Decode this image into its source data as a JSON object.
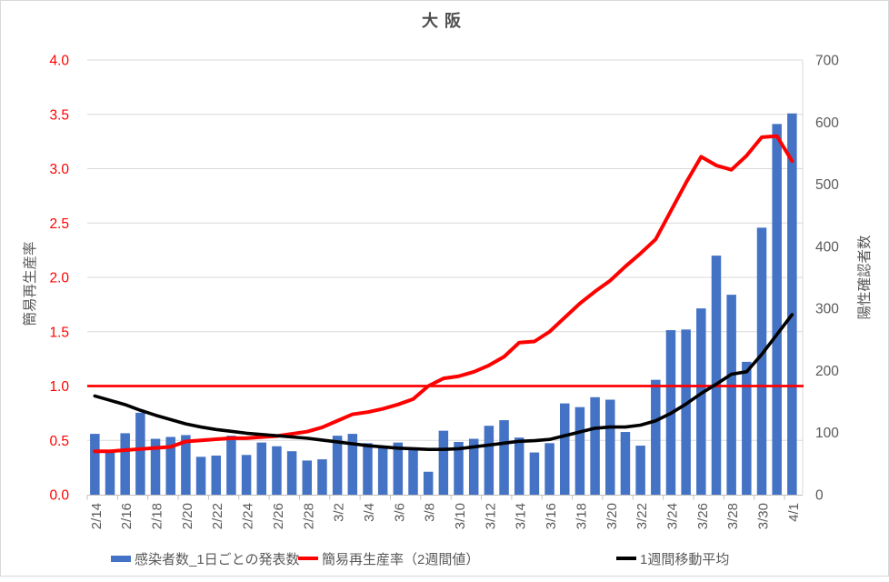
{
  "chart_data": {
    "type": "combo",
    "title": "大阪",
    "categories": [
      "2/14",
      "2/15",
      "2/16",
      "2/17",
      "2/18",
      "2/19",
      "2/20",
      "2/21",
      "2/22",
      "2/23",
      "2/24",
      "2/25",
      "2/26",
      "2/27",
      "2/28",
      "3/1",
      "3/2",
      "3/3",
      "3/4",
      "3/5",
      "3/6",
      "3/7",
      "3/8",
      "3/9",
      "3/10",
      "3/11",
      "3/12",
      "3/13",
      "3/14",
      "3/15",
      "3/16",
      "3/17",
      "3/18",
      "3/19",
      "3/20",
      "3/21",
      "3/22",
      "3/23",
      "3/24",
      "3/25",
      "3/26",
      "3/27",
      "3/28",
      "3/29",
      "3/30",
      "3/31",
      "4/1"
    ],
    "x_label_every_n": 2,
    "series": [
      {
        "name": "感染者数_1日ごとの発表数",
        "type": "bar",
        "axis": "right",
        "color": "#4472C4",
        "values": [
          98,
          70,
          99,
          132,
          90,
          93,
          96,
          61,
          63,
          95,
          64,
          84,
          78,
          70,
          55,
          57,
          95,
          98,
          83,
          78,
          84,
          75,
          37,
          103,
          85,
          90,
          111,
          120,
          92,
          68,
          83,
          147,
          141,
          157,
          153,
          101,
          79,
          185,
          265,
          266,
          300,
          385,
          322,
          214,
          430,
          597,
          614
        ]
      },
      {
        "name": "簡易再生産率（2週間値）",
        "type": "line",
        "axis": "left",
        "color": "#FF0000",
        "values": [
          0.4,
          0.4,
          0.41,
          0.42,
          0.43,
          0.44,
          0.49,
          0.5,
          0.51,
          0.52,
          0.52,
          0.53,
          0.54,
          0.56,
          0.58,
          0.62,
          0.68,
          0.74,
          0.76,
          0.79,
          0.83,
          0.88,
          1.0,
          1.07,
          1.09,
          1.13,
          1.19,
          1.27,
          1.4,
          1.41,
          1.5,
          1.63,
          1.76,
          1.87,
          1.97,
          2.1,
          2.22,
          2.35,
          2.61,
          2.87,
          3.11,
          3.03,
          2.99,
          3.12,
          3.29,
          3.3,
          3.07
        ]
      },
      {
        "name": "1週間移動平均",
        "type": "line",
        "axis": "right",
        "color": "#000000",
        "values": [
          159,
          152,
          145,
          136,
          128,
          121,
          114,
          109,
          105,
          102,
          99,
          97,
          95,
          93,
          91,
          88,
          85,
          82,
          79,
          77,
          75,
          74,
          73,
          73,
          74,
          77,
          80,
          83,
          86,
          87,
          89,
          95,
          101,
          107,
          109,
          109,
          112,
          119,
          131,
          146,
          163,
          178,
          194,
          198,
          226,
          258,
          290
        ]
      }
    ],
    "reference_line": {
      "axis": "left",
      "value": 1.0,
      "color": "#FF0000"
    },
    "left_axis": {
      "title": "簡易再生産率",
      "min": 0,
      "max": 4,
      "step": 0.5,
      "tick_labels": [
        "0.0",
        "0.5",
        "1.0",
        "1.5",
        "2.0",
        "2.5",
        "3.0",
        "3.5",
        "4.0"
      ],
      "label_color": "#FF0000"
    },
    "right_axis": {
      "title": "陽性確認者数",
      "min": 0,
      "max": 700,
      "step": 100,
      "tick_labels": [
        "0",
        "100",
        "200",
        "300",
        "400",
        "500",
        "600",
        "700"
      ],
      "label_color": "#595959"
    },
    "x_axis": {
      "label_color": "#595959"
    },
    "grid": true,
    "gridline_color": "#D9D9D9",
    "axis_line_color": "#BFBFBF",
    "legend_position": "bottom"
  }
}
